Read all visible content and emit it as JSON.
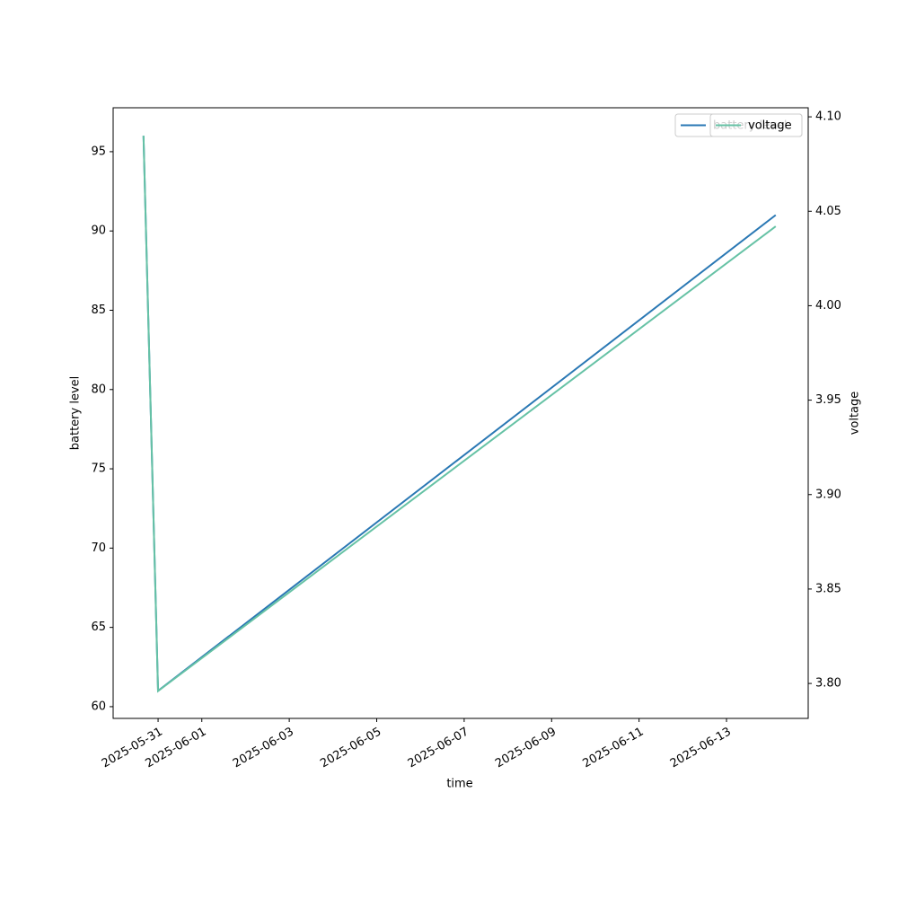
{
  "chart_data": {
    "type": "line",
    "x": [
      "2025-05-30T16:00",
      "2025-05-31T00:00",
      "2025-06-14T03:00"
    ],
    "series": [
      {
        "name": "battery level",
        "color": "#2a78b4",
        "values": [
          96.0,
          61.0,
          91.0
        ]
      },
      {
        "name": "voltage",
        "color": "#66c2a5",
        "axis": "y2",
        "values": [
          4.09,
          3.796,
          4.042
        ]
      }
    ],
    "xlabel": "time",
    "ylabel": "battery level",
    "y2label": "voltage",
    "xlim": [
      "2025-05-29T23:20",
      "2025-06-14T20:50"
    ],
    "xticks": [
      "2025-05-31",
      "2025-06-01",
      "2025-06-03",
      "2025-06-05",
      "2025-06-07",
      "2025-06-09",
      "2025-06-11",
      "2025-06-13"
    ],
    "ylim": [
      59.26,
      97.77
    ],
    "yticks": [
      60,
      65,
      70,
      75,
      80,
      85,
      90,
      95
    ],
    "y2lim": [
      3.7815,
      4.1048
    ],
    "y2ticks": [
      {
        "value": 3.8,
        "label": "3.80"
      },
      {
        "value": 3.85,
        "label": "3.85"
      },
      {
        "value": 3.9,
        "label": "3.90"
      },
      {
        "value": 3.95,
        "label": "3.95"
      },
      {
        "value": 4.0,
        "label": "4.00"
      },
      {
        "value": 4.05,
        "label": "4.05"
      },
      {
        "value": 4.1,
        "label": "4.10"
      }
    ],
    "legend": "upper right",
    "grid": false
  }
}
